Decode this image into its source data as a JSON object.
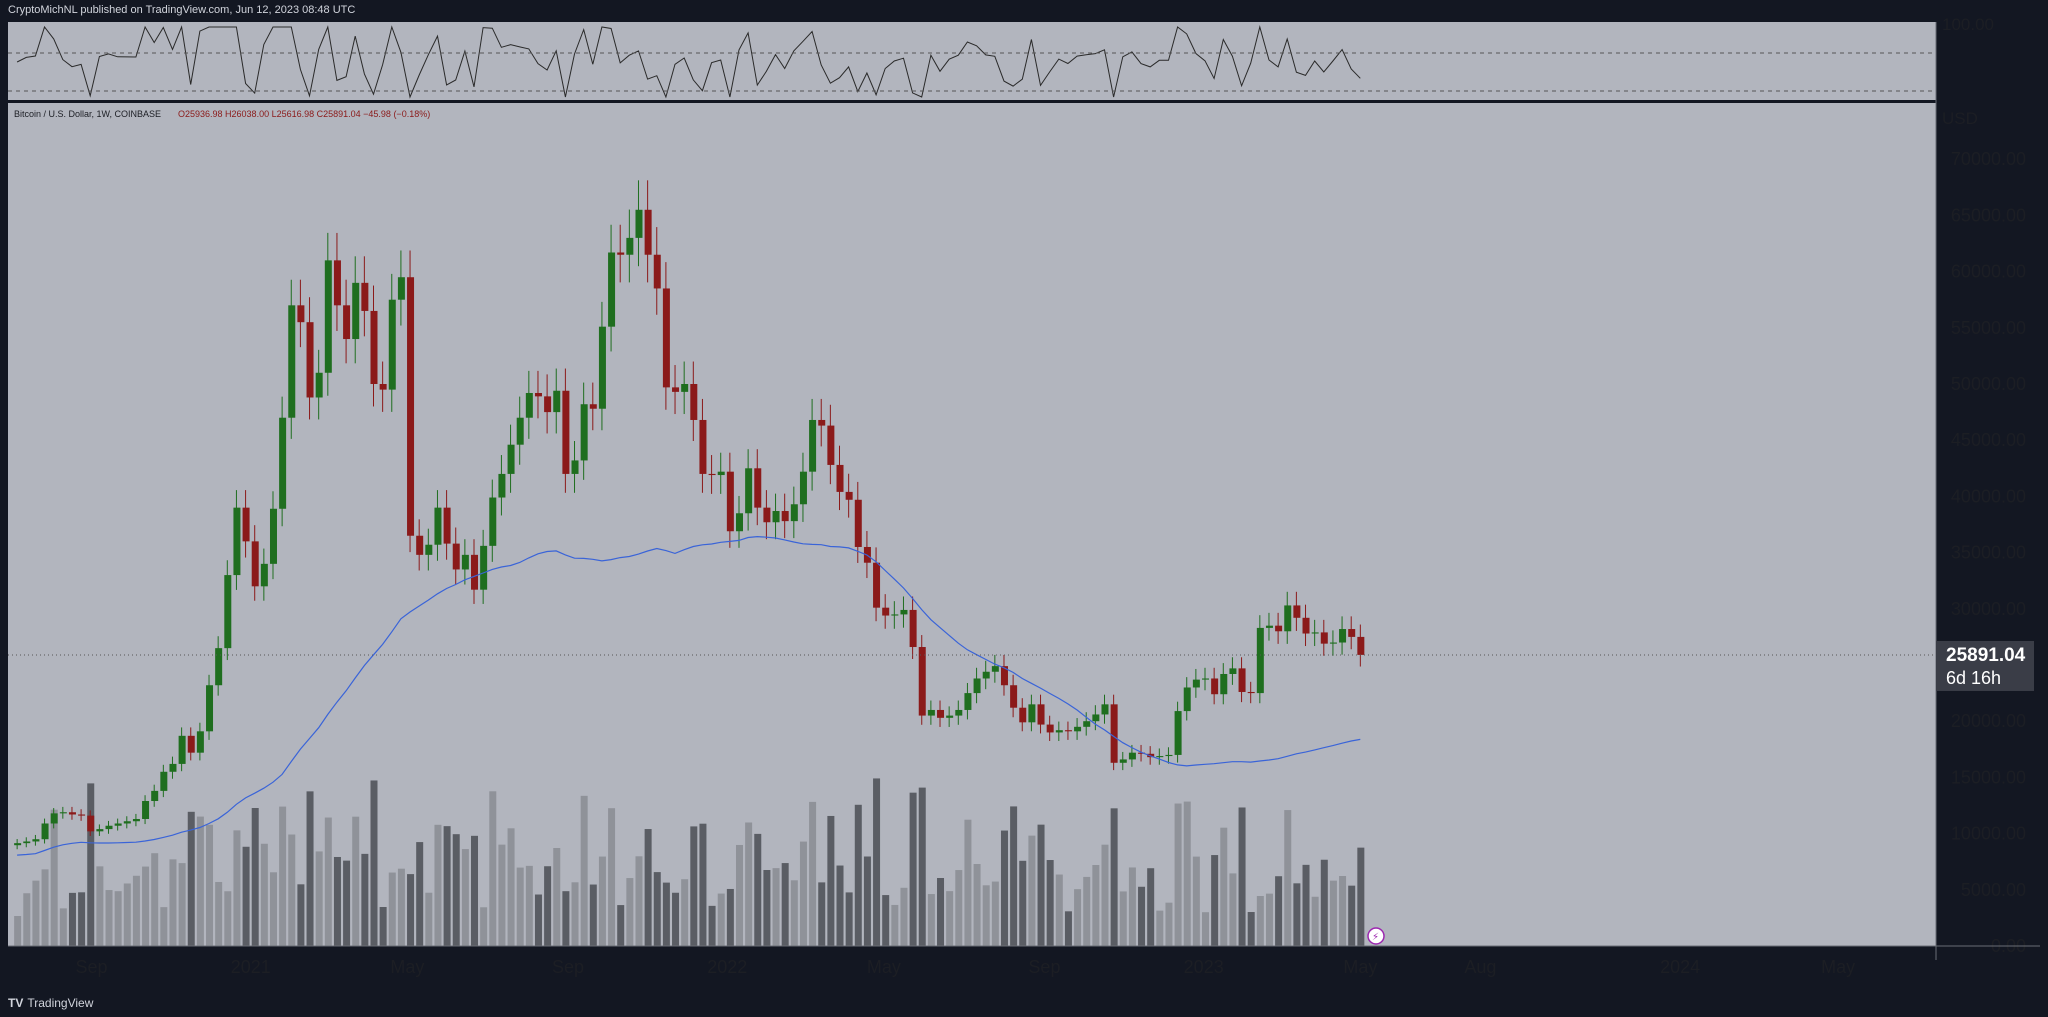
{
  "header": {
    "published": "CryptoMichNL published on TradingView.com, Jun 12, 2023 08:48 UTC"
  },
  "footer": {
    "brand": "TradingView"
  },
  "colors": {
    "page_bg": "#131722",
    "pane_bg": "#b2b5be",
    "grid": "#9a9da6",
    "bull": "#1f6e1f",
    "bear": "#8b1a1a",
    "ma": "#3a64d8",
    "axis_text": "#1c1e24",
    "price_label_bg": "#3a3d47",
    "price_label_text": "#ffffff",
    "rsi_line": "#2a2a2a",
    "rsi_fill": "#4caf50"
  },
  "symbol_line": {
    "name": "Bitcoin / U.S. Dollar, 1W, COINBASE",
    "ohlc": "O25936.98 H26038.00 L25616.98 C25891.04 −45.98 (−0.18%)"
  },
  "rsi_panel": {
    "axis_label": "100.00"
  },
  "price_axis": {
    "unit": "USD",
    "ticks": [
      {
        "value": 70000,
        "label": "70000.00"
      },
      {
        "value": 65000,
        "label": "65000.00"
      },
      {
        "value": 60000,
        "label": "60000.00"
      },
      {
        "value": 55000,
        "label": "55000.00"
      },
      {
        "value": 50000,
        "label": "50000.00"
      },
      {
        "value": 45000,
        "label": "45000.00"
      },
      {
        "value": 40000,
        "label": "40000.00"
      },
      {
        "value": 35000,
        "label": "35000.00"
      },
      {
        "value": 30000,
        "label": "30000.00"
      },
      {
        "value": 25000,
        "label": "25000.00"
      },
      {
        "value": 20000,
        "label": "20000.00"
      },
      {
        "value": 15000,
        "label": "15000.00"
      },
      {
        "value": 10000,
        "label": "10000.00"
      },
      {
        "value": 5000,
        "label": "5000.00"
      },
      {
        "value": 0,
        "label": "0.00"
      }
    ],
    "last_price": "25891.04",
    "countdown": "6d 16h"
  },
  "time_axis": {
    "labels": [
      {
        "label": "Sep",
        "date": "2020-09-01"
      },
      {
        "label": "2021",
        "date": "2021-01-01"
      },
      {
        "label": "May",
        "date": "2021-05-01"
      },
      {
        "label": "Sep",
        "date": "2021-09-01"
      },
      {
        "label": "2022",
        "date": "2022-01-01"
      },
      {
        "label": "May",
        "date": "2022-05-01"
      },
      {
        "label": "Sep",
        "date": "2022-09-01"
      },
      {
        "label": "2023",
        "date": "2023-01-01"
      },
      {
        "label": "May",
        "date": "2023-05-01"
      },
      {
        "label": "Aug",
        "date": "2023-08-01"
      },
      {
        "label": "2024",
        "date": "2024-01-01"
      },
      {
        "label": "May",
        "date": "2024-05-01"
      }
    ]
  },
  "chart_data": {
    "type": "candlestick",
    "title": "Bitcoin / U.S. Dollar, 1W, COINBASE",
    "interval": "1W",
    "ylabel": "USD",
    "ylim": [
      0,
      75000
    ],
    "xlim": [
      "2020-06-29",
      "2024-07-15"
    ],
    "grid": false,
    "indicators": [
      "moving average (blue)",
      "volume",
      "RSI"
    ],
    "candles_weekly_closes": [
      9150,
      9300,
      9500,
      10900,
      11800,
      11900,
      11700,
      11600,
      10200,
      10400,
      10700,
      10900,
      11100,
      11300,
      12900,
      13800,
      15500,
      16200,
      18700,
      17200,
      19100,
      23200,
      26500,
      33000,
      39000,
      36000,
      32000,
      34000,
      38900,
      47000,
      57000,
      55500,
      48800,
      51000,
      61000,
      57000,
      54000,
      59000,
      56500,
      50000,
      49500,
      57500,
      59500,
      36500,
      34800,
      35700,
      39000,
      35800,
      33500,
      34800,
      31700,
      35600,
      39900,
      42000,
      44600,
      47000,
      49200,
      48900,
      47500,
      49400,
      42000,
      43200,
      48200,
      47800,
      55100,
      61700,
      61500,
      63000,
      65500,
      61500,
      58500,
      49700,
      49300,
      50000,
      46800,
      42000,
      41900,
      42200,
      36900,
      38500,
      42500,
      39000,
      37700,
      38700,
      37800,
      39300,
      42200,
      46800,
      46300,
      42800,
      40400,
      39700,
      35500,
      34100,
      30100,
      29400,
      29500,
      29900,
      26600,
      20500,
      21000,
      20300,
      20500,
      21000,
      22500,
      23800,
      24400,
      24900,
      23200,
      21200,
      19900,
      21500,
      19700,
      19000,
      19200,
      19100,
      19500,
      20000,
      20600,
      21500,
      16300,
      16600,
      17200,
      17100,
      16800,
      16900,
      17000,
      20900,
      23000,
      23700,
      23800,
      22400,
      24200,
      24700,
      22600,
      22500,
      28300,
      28500,
      28000,
      30300,
      29200,
      27800,
      27900,
      26900,
      27000,
      28200,
      27500,
      25900
    ]
  }
}
